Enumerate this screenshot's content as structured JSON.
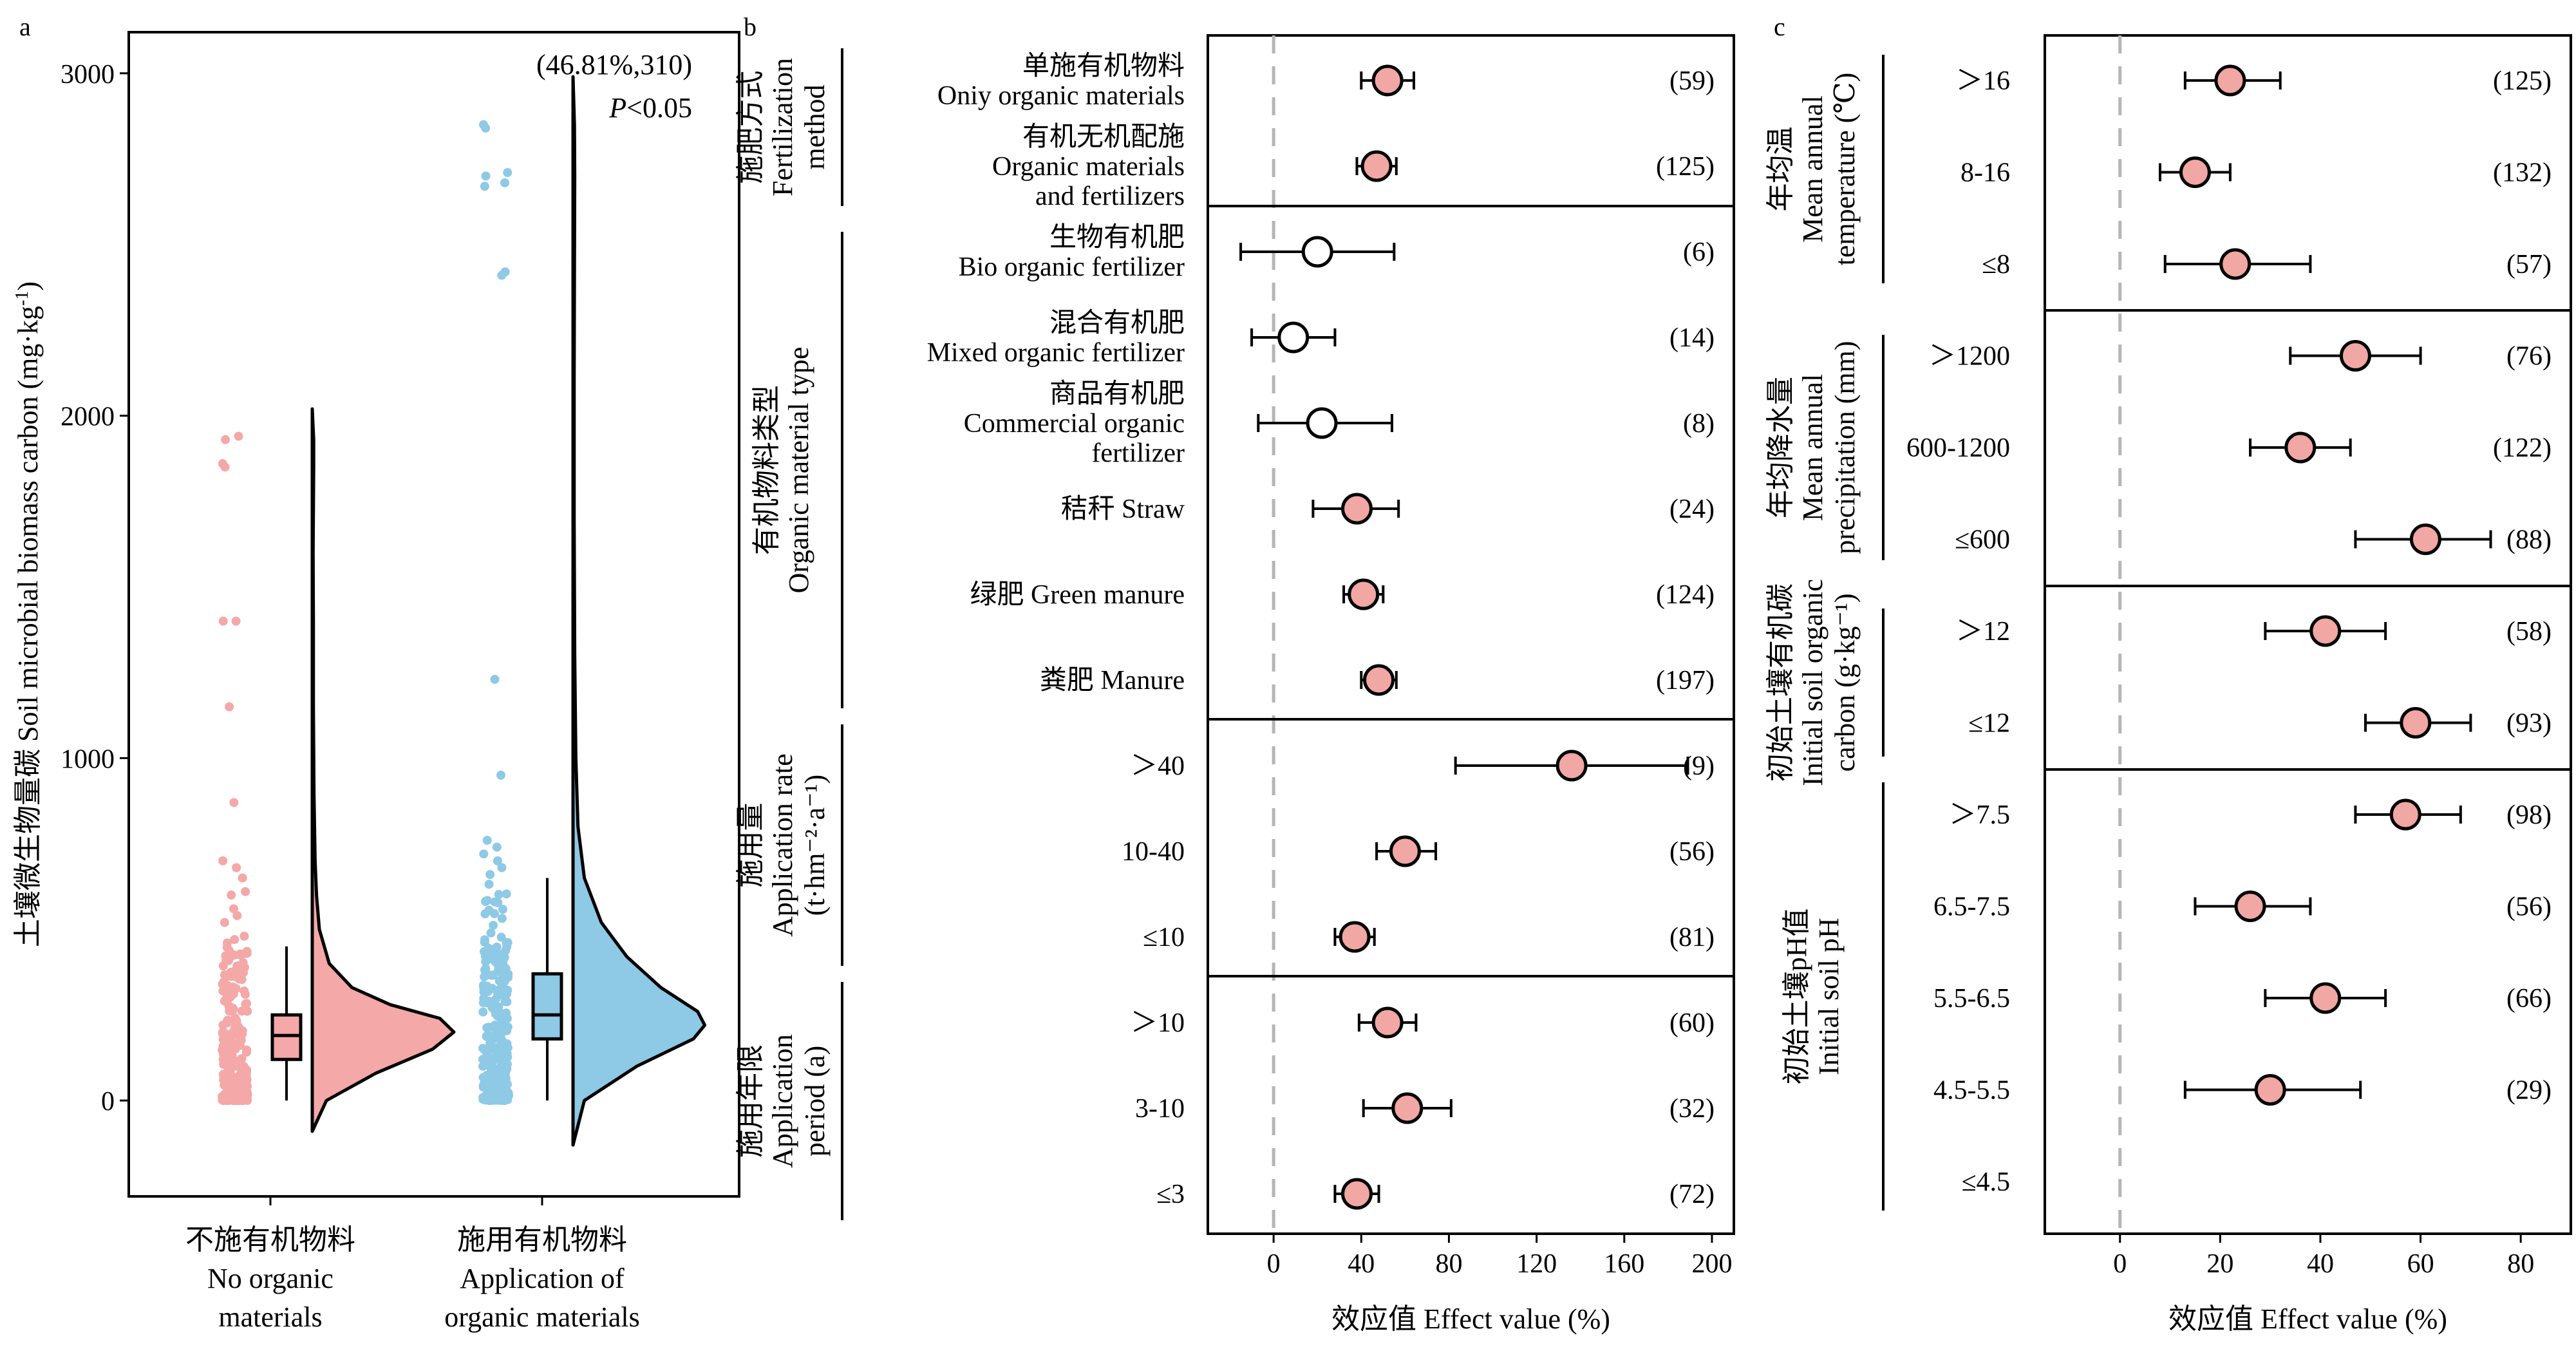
{
  "chart_data": [
    {
      "type": "raincloud",
      "panel_label": "a",
      "ylabel": "土壤微生物量碳 Soil microbial biomass carbon (mg·kg⁻¹)",
      "ylabel_parts": {
        "main": "土壤微生物量碳 Soil microbial biomass carbon (mg·kg",
        "sup": "-1",
        "end": ")"
      },
      "ylim": [
        -280,
        3120
      ],
      "yticks": [
        0,
        1000,
        2000,
        3000
      ],
      "annotation": "(46.81%,310)",
      "pvalue": {
        "letter": "P",
        "rest": "<0.05"
      },
      "colors": {
        "no_org": "#f4a8a8",
        "org": "#8ec9e6"
      },
      "groups": [
        {
          "name_zh": "不施有机物料",
          "name_en": [
            "No organic",
            "materials"
          ],
          "box": {
            "min": 0,
            "q1": 120,
            "median": 190,
            "q3": 250,
            "max": 450
          },
          "density_range": [
            -90,
            2020
          ],
          "density": [
            [
              -90,
              0
            ],
            [
              0,
              0.1
            ],
            [
              80,
              0.45
            ],
            [
              150,
              0.85
            ],
            [
              200,
              1.0
            ],
            [
              240,
              0.9
            ],
            [
              280,
              0.55
            ],
            [
              330,
              0.28
            ],
            [
              400,
              0.12
            ],
            [
              500,
              0.05
            ],
            [
              600,
              0.03
            ],
            [
              700,
              0.02
            ],
            [
              900,
              0.012
            ],
            [
              1150,
              0.008
            ],
            [
              1400,
              0.008
            ],
            [
              1600,
              0.006
            ],
            [
              1850,
              0.01
            ],
            [
              1930,
              0.01
            ],
            [
              2020,
              0
            ]
          ],
          "outliers": [
            1940,
            1930,
            1860,
            1850,
            1400,
            1400,
            1150,
            870,
            700,
            680,
            650,
            610,
            600,
            560,
            540,
            520,
            480,
            470,
            460
          ],
          "jitter_max": 450
        },
        {
          "name_zh": "施用有机物料",
          "name_en": [
            "Application of",
            "organic materials"
          ],
          "box": {
            "min": 0,
            "q1": 180,
            "median": 250,
            "q3": 370,
            "max": 650
          },
          "density_range": [
            -130,
            2990
          ],
          "density": [
            [
              -130,
              0
            ],
            [
              0,
              0.08
            ],
            [
              100,
              0.45
            ],
            [
              180,
              0.85
            ],
            [
              220,
              0.93
            ],
            [
              260,
              0.88
            ],
            [
              330,
              0.62
            ],
            [
              420,
              0.38
            ],
            [
              520,
              0.2
            ],
            [
              650,
              0.08
            ],
            [
              800,
              0.035
            ],
            [
              1000,
              0.02
            ],
            [
              1300,
              0.012
            ],
            [
              1700,
              0.008
            ],
            [
              2100,
              0.008
            ],
            [
              2420,
              0.01
            ],
            [
              2700,
              0.012
            ],
            [
              2850,
              0.01
            ],
            [
              2990,
              0
            ]
          ],
          "outliers": [
            2850,
            2840,
            2710,
            2700,
            2680,
            2670,
            2420,
            2410,
            1230,
            950,
            760,
            740,
            720,
            700,
            680,
            660
          ],
          "jitter_max": 650
        }
      ]
    },
    {
      "type": "forest",
      "panel_label": "b",
      "xlabel": "效应值 Effect value (%)",
      "xlim": [
        -30,
        210
      ],
      "xticks": [
        0,
        40,
        80,
        120,
        160,
        200
      ],
      "colors": {
        "fill": "#f1a7a3",
        "open": "#ffffff"
      },
      "groups": [
        {
          "label": [
            "施肥方式",
            "Fertilization",
            "method"
          ],
          "rows": [
            {
              "label": [
                "单施有机物料",
                "Oniy organic materials"
              ],
              "est": 52,
              "lo": 40,
              "hi": 64,
              "n": "(59)",
              "filled": true
            },
            {
              "label": [
                "有机无机配施",
                "Organic materials",
                "and fertilizers"
              ],
              "est": 47,
              "lo": 38,
              "hi": 56,
              "n": "(125)",
              "filled": true
            }
          ]
        },
        {
          "label": [
            "有机物料类型",
            "Organic material type"
          ],
          "rows": [
            {
              "label": [
                "生物有机肥",
                "Bio organic fertilizer"
              ],
              "est": 20,
              "lo": -15,
              "hi": 55,
              "n": "(6)",
              "filled": false
            },
            {
              "label": [
                "混合有机肥",
                "Mixed organic fertilizer"
              ],
              "est": 9,
              "lo": -10,
              "hi": 28,
              "n": "(14)",
              "filled": false
            },
            {
              "label": [
                "商品有机肥",
                "Commercial organic",
                "fertilizer"
              ],
              "est": 22,
              "lo": -7,
              "hi": 54,
              "n": "(8)",
              "filled": false
            },
            {
              "label": [
                "秸秆 Straw"
              ],
              "est": 38,
              "lo": 18,
              "hi": 57,
              "n": "(24)",
              "filled": true
            },
            {
              "label": [
                "绿肥 Green manure"
              ],
              "est": 41,
              "lo": 32,
              "hi": 50,
              "n": "(124)",
              "filled": true
            },
            {
              "label": [
                "粪肥 Manure"
              ],
              "est": 48,
              "lo": 40,
              "hi": 56,
              "n": "(197)",
              "filled": true
            }
          ]
        },
        {
          "label": [
            "施用量",
            "Application rate",
            "(t·hm⁻²·a⁻¹)"
          ],
          "rows": [
            {
              "label": [
                "＞40"
              ],
              "est": 136,
              "lo": 83,
              "hi": 189,
              "n": "(9)",
              "filled": true
            },
            {
              "label": [
                "10-40"
              ],
              "est": 60,
              "lo": 47,
              "hi": 74,
              "n": "(56)",
              "filled": true
            },
            {
              "label": [
                "≤10"
              ],
              "est": 37,
              "lo": 28,
              "hi": 46,
              "n": "(81)",
              "filled": true
            }
          ]
        },
        {
          "label": [
            "施用年限",
            "Application",
            "period (a)"
          ],
          "rows": [
            {
              "label": [
                "＞10"
              ],
              "est": 52,
              "lo": 39,
              "hi": 65,
              "n": "(60)",
              "filled": true
            },
            {
              "label": [
                "3-10"
              ],
              "est": 61,
              "lo": 41,
              "hi": 81,
              "n": "(32)",
              "filled": true
            },
            {
              "label": [
                "≤3"
              ],
              "est": 38,
              "lo": 28,
              "hi": 48,
              "n": "(72)",
              "filled": true
            }
          ]
        }
      ]
    },
    {
      "type": "forest",
      "panel_label": "c",
      "xlabel": "效应值 Effect value (%)",
      "xlim": [
        -15,
        90
      ],
      "xticks": [
        0,
        20,
        40,
        60,
        80
      ],
      "colors": {
        "fill": "#f1a7a3",
        "open": "#ffffff"
      },
      "groups": [
        {
          "label": [
            "年均温",
            "Mean annual",
            "temperature (℃)"
          ],
          "rows": [
            {
              "label": [
                "＞16"
              ],
              "est": 22,
              "lo": 13,
              "hi": 32,
              "n": "(125)",
              "filled": true
            },
            {
              "label": [
                "8-16"
              ],
              "est": 15,
              "lo": 8,
              "hi": 22,
              "n": "(132)",
              "filled": true
            },
            {
              "label": [
                "≤8"
              ],
              "est": 23,
              "lo": 9,
              "hi": 38,
              "n": "(57)",
              "filled": true
            }
          ]
        },
        {
          "label": [
            "年均降水量",
            "Mean annual",
            "precipitation (mm)"
          ],
          "rows": [
            {
              "label": [
                "＞1200"
              ],
              "est": 47,
              "lo": 34,
              "hi": 60,
              "n": "(76)",
              "filled": true
            },
            {
              "label": [
                "600-1200"
              ],
              "est": 36,
              "lo": 26,
              "hi": 46,
              "n": "(122)",
              "filled": true
            },
            {
              "label": [
                "≤600"
              ],
              "est": 61,
              "lo": 47,
              "hi": 74,
              "n": "(88)",
              "filled": true
            }
          ]
        },
        {
          "label": [
            "初始土壤有机碳",
            "Initial soil organic",
            "carbon (g·kg⁻¹)"
          ],
          "rows": [
            {
              "label": [
                "＞12"
              ],
              "est": 41,
              "lo": 29,
              "hi": 53,
              "n": "(58)",
              "filled": true
            },
            {
              "label": [
                "≤12"
              ],
              "est": 59,
              "lo": 49,
              "hi": 70,
              "n": "(93)",
              "filled": true
            }
          ]
        },
        {
          "label": [
            "初始土壤pH值",
            "Initial soil pH"
          ],
          "rows": [
            {
              "label": [
                "＞7.5"
              ],
              "est": 57,
              "lo": 47,
              "hi": 68,
              "n": "(98)",
              "filled": true
            },
            {
              "label": [
                "6.5-7.5"
              ],
              "est": 26,
              "lo": 15,
              "hi": 38,
              "n": "(56)",
              "filled": true
            },
            {
              "label": [
                "5.5-6.5"
              ],
              "est": 41,
              "lo": 29,
              "hi": 53,
              "n": "(66)",
              "filled": true
            },
            {
              "label": [
                "4.5-5.5"
              ],
              "est": 30,
              "lo": 13,
              "hi": 48,
              "n": "(29)",
              "filled": true
            },
            {
              "label": [
                "≤4.5"
              ],
              "est": null,
              "lo": null,
              "hi": null,
              "n": "",
              "filled": true
            }
          ]
        }
      ]
    }
  ]
}
